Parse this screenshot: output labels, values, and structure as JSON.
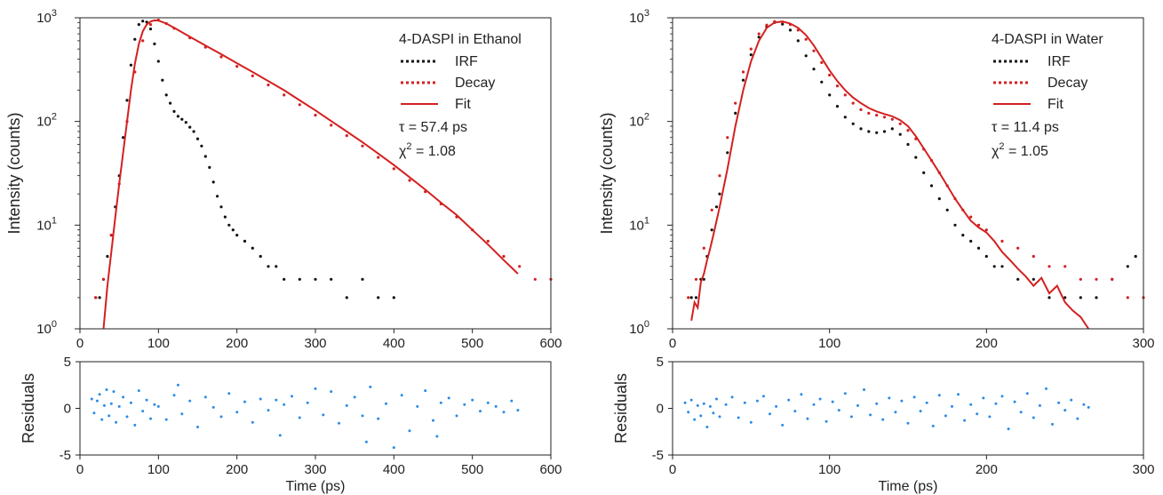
{
  "chart_data": [
    {
      "type": "scatter",
      "panel": "main",
      "ylabel": "Intensity (counts)",
      "yscale": "log",
      "xlim": [
        0,
        600
      ],
      "ylim": [
        1,
        1000
      ],
      "xticks": [
        "0",
        "100",
        "200",
        "300",
        "400",
        "500",
        "600"
      ],
      "yticks": [
        {
          "base": "10",
          "exp": "0"
        },
        {
          "base": "10",
          "exp": "1"
        },
        {
          "base": "10",
          "exp": "2"
        },
        {
          "base": "10",
          "exp": "3"
        }
      ],
      "legend": {
        "position": "top-right",
        "title": "4-DASPI in Ethanol",
        "entries": [
          "IRF",
          "Decay",
          "Fit"
        ],
        "tau": "τ = 57.4 ps",
        "chi_base": "χ",
        "chi_sup": "2",
        "chi_value": " = 1.08"
      },
      "series": [
        {
          "name": "IRF",
          "style": "dotted",
          "color": "#111111",
          "x": [
            20,
            25,
            30,
            35,
            40,
            45,
            50,
            55,
            60,
            65,
            70,
            75,
            80,
            85,
            90,
            95,
            100,
            105,
            110,
            115,
            120,
            125,
            130,
            135,
            140,
            145,
            150,
            155,
            160,
            165,
            170,
            175,
            180,
            185,
            190,
            195,
            200,
            210,
            220,
            230,
            240,
            250,
            260,
            280,
            300,
            320,
            340,
            360,
            380,
            400
          ],
          "y": [
            2,
            2,
            3,
            5,
            8,
            15,
            30,
            70,
            160,
            350,
            620,
            860,
            930,
            910,
            780,
            560,
            380,
            250,
            180,
            150,
            125,
            112,
            105,
            98,
            88,
            80,
            68,
            58,
            46,
            36,
            26,
            19,
            15,
            12,
            10,
            9,
            8,
            7,
            6,
            5,
            4,
            4,
            3,
            3,
            3,
            3,
            2,
            3,
            2,
            2
          ]
        },
        {
          "name": "Decay",
          "style": "dotted",
          "color": "#d42020",
          "x": [
            20,
            30,
            40,
            50,
            60,
            70,
            80,
            90,
            100,
            110,
            120,
            140,
            160,
            180,
            200,
            220,
            240,
            260,
            280,
            300,
            320,
            340,
            360,
            380,
            400,
            420,
            440,
            460,
            480,
            500,
            520,
            540,
            560,
            580,
            600
          ],
          "y": [
            2,
            3,
            8,
            25,
            100,
            300,
            600,
            860,
            950,
            880,
            790,
            640,
            520,
            420,
            340,
            275,
            225,
            180,
            145,
            115,
            92,
            73,
            58,
            45,
            35,
            27,
            21,
            16,
            12,
            9,
            7,
            5,
            4,
            3,
            3
          ]
        },
        {
          "name": "Fit",
          "style": "solid",
          "color": "#d42020",
          "x": [
            30,
            35,
            40,
            45,
            50,
            55,
            60,
            65,
            70,
            75,
            80,
            85,
            90,
            95,
            100,
            110,
            120,
            140,
            160,
            180,
            200,
            220,
            240,
            260,
            280,
            300,
            320,
            340,
            360,
            380,
            400,
            420,
            440,
            460,
            480,
            500,
            520,
            540,
            558
          ],
          "y": [
            1.0,
            2.6,
            5.5,
            12,
            25,
            50,
            100,
            200,
            360,
            560,
            740,
            860,
            920,
            945,
            940,
            880,
            800,
            655,
            540,
            445,
            365,
            300,
            245,
            200,
            160,
            128,
            101,
            80,
            63,
            49,
            38,
            29,
            22,
            16.5,
            12.5,
            9,
            6.5,
            4.6,
            3.4
          ]
        }
      ]
    },
    {
      "type": "scatter",
      "panel": "residuals",
      "xlabel": "Time (ps)",
      "ylabel": "Residuals",
      "xlim": [
        0,
        600
      ],
      "ylim": [
        -5,
        5
      ],
      "xticks": [
        "0",
        "100",
        "200",
        "300",
        "400",
        "500",
        "600"
      ],
      "yticks": [
        "-5",
        "0",
        "5"
      ],
      "series": [
        {
          "color": "#2b8be6",
          "x": [
            15,
            18,
            22,
            25,
            28,
            31,
            34,
            37,
            40,
            43,
            46,
            50,
            55,
            60,
            65,
            70,
            75,
            80,
            85,
            90,
            95,
            100,
            110,
            120,
            125,
            130,
            140,
            150,
            160,
            170,
            180,
            190,
            200,
            210,
            220,
            230,
            240,
            250,
            255,
            260,
            270,
            280,
            290,
            300,
            310,
            320,
            330,
            340,
            350,
            360,
            365,
            370,
            380,
            390,
            400,
            410,
            420,
            430,
            440,
            450,
            455,
            460,
            470,
            480,
            490,
            500,
            510,
            520,
            530,
            540,
            550,
            558
          ],
          "y": [
            1.0,
            -0.5,
            0.8,
            1.5,
            -1.2,
            0.3,
            2.0,
            -0.8,
            0.5,
            1.8,
            -1.5,
            0.2,
            1.2,
            -0.9,
            0.6,
            -1.8,
            1.9,
            -0.3,
            0.9,
            -1.1,
            0.4,
            0.2,
            -1.2,
            1.4,
            2.5,
            -0.6,
            0.8,
            -2.0,
            1.2,
            0.1,
            -0.9,
            1.6,
            -0.4,
            0.7,
            -1.5,
            1.0,
            -0.2,
            0.9,
            -2.9,
            0.4,
            1.3,
            -1.0,
            0.6,
            2.1,
            -0.7,
            1.8,
            -1.6,
            0.3,
            1.2,
            -0.8,
            -3.6,
            2.3,
            -1.1,
            0.5,
            -4.2,
            1.4,
            -2.4,
            0.2,
            1.9,
            -1.3,
            -3.0,
            0.6,
            1.1,
            -0.8,
            0.4,
            0.9,
            -0.3,
            0.6,
            0.2,
            -0.4,
            0.8,
            -0.2
          ]
        }
      ]
    },
    {
      "type": "scatter",
      "panel": "main",
      "ylabel": "Intensity (counts)",
      "yscale": "log",
      "xlim": [
        0,
        300
      ],
      "ylim": [
        1,
        1000
      ],
      "xticks": [
        "0",
        "100",
        "200",
        "300"
      ],
      "yticks": [
        {
          "base": "10",
          "exp": "0"
        },
        {
          "base": "10",
          "exp": "1"
        },
        {
          "base": "10",
          "exp": "2"
        },
        {
          "base": "10",
          "exp": "3"
        }
      ],
      "legend": {
        "position": "top-right",
        "title": "4-DASPI in Water",
        "entries": [
          "IRF",
          "Decay",
          "Fit"
        ],
        "tau": "τ = 11.4 ps",
        "chi_base": "χ",
        "chi_sup": "2",
        "chi_value": " = 1.05"
      },
      "series": [
        {
          "name": "IRF",
          "style": "dotted",
          "color": "#111111",
          "x": [
            12,
            15,
            18,
            20,
            22,
            25,
            28,
            30,
            35,
            40,
            45,
            50,
            55,
            60,
            65,
            70,
            75,
            80,
            85,
            90,
            95,
            100,
            105,
            110,
            115,
            120,
            125,
            130,
            135,
            140,
            145,
            150,
            155,
            160,
            165,
            170,
            175,
            180,
            185,
            190,
            195,
            200,
            205,
            210,
            220,
            230,
            240,
            250,
            260,
            270,
            280,
            290,
            295
          ],
          "y": [
            2,
            2,
            3,
            3,
            5,
            9,
            15,
            20,
            50,
            120,
            250,
            440,
            650,
            820,
            900,
            870,
            760,
            600,
            430,
            320,
            240,
            180,
            140,
            110,
            95,
            85,
            80,
            78,
            80,
            85,
            75,
            60,
            45,
            32,
            24,
            18,
            14,
            10,
            8,
            7,
            6,
            5,
            4,
            4,
            3,
            3,
            2,
            2,
            2,
            2,
            3,
            4,
            5
          ]
        },
        {
          "name": "Decay",
          "style": "dotted",
          "color": "#d42020",
          "x": [
            10,
            15,
            20,
            25,
            30,
            35,
            40,
            45,
            50,
            55,
            60,
            65,
            70,
            75,
            80,
            85,
            90,
            95,
            100,
            105,
            110,
            115,
            120,
            125,
            130,
            135,
            140,
            145,
            150,
            155,
            160,
            165,
            170,
            175,
            180,
            185,
            190,
            195,
            200,
            210,
            220,
            230,
            240,
            250,
            260,
            270,
            280,
            290,
            300
          ],
          "y": [
            2,
            3,
            6,
            14,
            30,
            70,
            150,
            300,
            500,
            700,
            850,
            920,
            910,
            860,
            760,
            620,
            480,
            370,
            280,
            220,
            180,
            150,
            130,
            120,
            115,
            110,
            105,
            95,
            82,
            68,
            54,
            42,
            32,
            24,
            18,
            14,
            12,
            10,
            9,
            7,
            6,
            5,
            4,
            4,
            3,
            3,
            3,
            2,
            2
          ]
        },
        {
          "name": "Fit",
          "style": "solid",
          "color": "#d42020",
          "x": [
            12,
            14,
            16,
            18,
            20,
            22,
            24,
            26,
            28,
            30,
            35,
            40,
            45,
            50,
            55,
            60,
            65,
            70,
            75,
            80,
            85,
            90,
            95,
            100,
            105,
            110,
            115,
            120,
            125,
            130,
            135,
            140,
            145,
            150,
            155,
            160,
            165,
            170,
            175,
            180,
            185,
            190,
            195,
            200,
            205,
            210,
            215,
            220,
            225,
            230,
            235,
            240,
            245,
            250,
            255,
            260,
            265
          ],
          "y": [
            1.2,
            1.8,
            1.6,
            2.8,
            3.4,
            4.6,
            6,
            8,
            11,
            15,
            35,
            90,
            200,
            380,
            600,
            800,
            900,
            920,
            880,
            800,
            680,
            540,
            410,
            310,
            245,
            200,
            170,
            150,
            135,
            125,
            118,
            112,
            103,
            90,
            72,
            55,
            42,
            32,
            24,
            18,
            14,
            11,
            9.5,
            8.5,
            7,
            5.5,
            4.6,
            3.8,
            3.2,
            2.6,
            3.1,
            2.2,
            2.6,
            1.8,
            1.5,
            1.3,
            1.0
          ]
        }
      ]
    },
    {
      "type": "scatter",
      "panel": "residuals",
      "xlabel": "Time (ps)",
      "ylabel": "Residuals",
      "xlim": [
        0,
        300
      ],
      "ylim": [
        -5,
        5
      ],
      "xticks": [
        "0",
        "100",
        "200",
        "300"
      ],
      "yticks": [
        "-5",
        "0",
        "5"
      ],
      "series": [
        {
          "color": "#2b8be6",
          "x": [
            8,
            10,
            12,
            14,
            16,
            18,
            20,
            22,
            24,
            26,
            28,
            30,
            34,
            38,
            42,
            46,
            50,
            54,
            58,
            62,
            66,
            70,
            74,
            78,
            82,
            86,
            90,
            94,
            98,
            102,
            106,
            110,
            114,
            118,
            122,
            126,
            130,
            134,
            138,
            142,
            146,
            150,
            154,
            158,
            162,
            166,
            170,
            174,
            178,
            182,
            186,
            190,
            194,
            198,
            202,
            206,
            210,
            214,
            218,
            222,
            226,
            230,
            234,
            238,
            242,
            246,
            250,
            254,
            258,
            262,
            265
          ],
          "y": [
            0.6,
            -0.4,
            0.9,
            -1.2,
            0.3,
            -0.8,
            0.5,
            -2.0,
            0.2,
            -0.5,
            1.0,
            -0.9,
            0.4,
            1.2,
            -1.0,
            0.6,
            -1.5,
            0.8,
            1.3,
            -0.6,
            0.2,
            -1.8,
            0.9,
            -0.3,
            1.5,
            -1.1,
            0.4,
            1.0,
            -1.4,
            0.7,
            -0.2,
            1.6,
            -0.9,
            0.3,
            2.0,
            -0.7,
            0.5,
            -1.2,
            1.1,
            -0.4,
            0.8,
            -1.6,
            1.2,
            -0.3,
            0.6,
            -1.9,
            1.4,
            -0.8,
            0.2,
            1.5,
            -1.3,
            0.4,
            -0.6,
            1.1,
            -0.9,
            0.5,
            1.3,
            -2.2,
            0.7,
            -0.4,
            1.6,
            -1.0,
            0.3,
            2.1,
            -1.7,
            0.6,
            -0.2,
            0.9,
            -1.1,
            0.4,
            0.1
          ]
        }
      ]
    }
  ]
}
